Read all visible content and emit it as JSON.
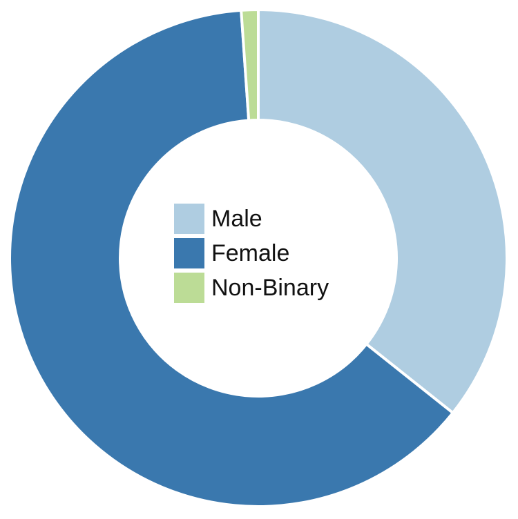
{
  "chart_data": {
    "type": "pie",
    "donut": true,
    "categories": [
      "Male",
      "Female",
      "Non-Binary"
    ],
    "values": [
      35.7,
      63.2,
      1.1
    ],
    "colors": [
      "#afcde1",
      "#3a78ae",
      "#bcdc96"
    ],
    "legend_position": "center"
  }
}
